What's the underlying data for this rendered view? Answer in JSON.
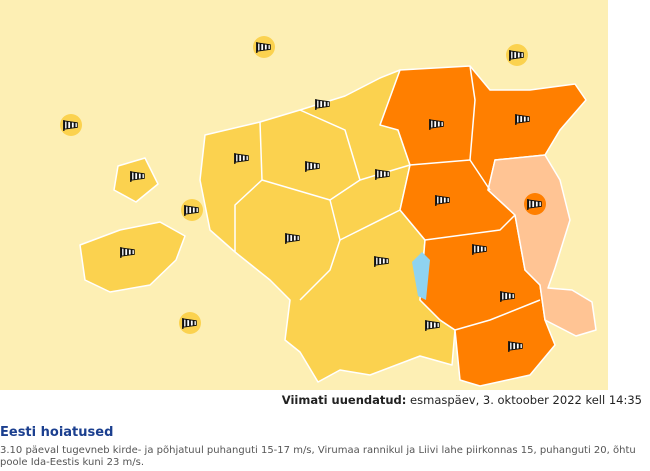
{
  "map": {
    "updated_label": "Viimati uuendatud:",
    "updated_value": "esmaspäev, 3. oktoober 2022 kell 14:35"
  },
  "warnings": {
    "title": "Eesti hoiatused",
    "text": "3.10 päeval tugevneb kirde- ja põhjatuul puhanguti 15-17 m/s, Virumaa rannikul ja Liivi lahe piirkonnas 15, puhanguti 20, õhtu poole Ida-Eestis kuni 23 m/s."
  }
}
